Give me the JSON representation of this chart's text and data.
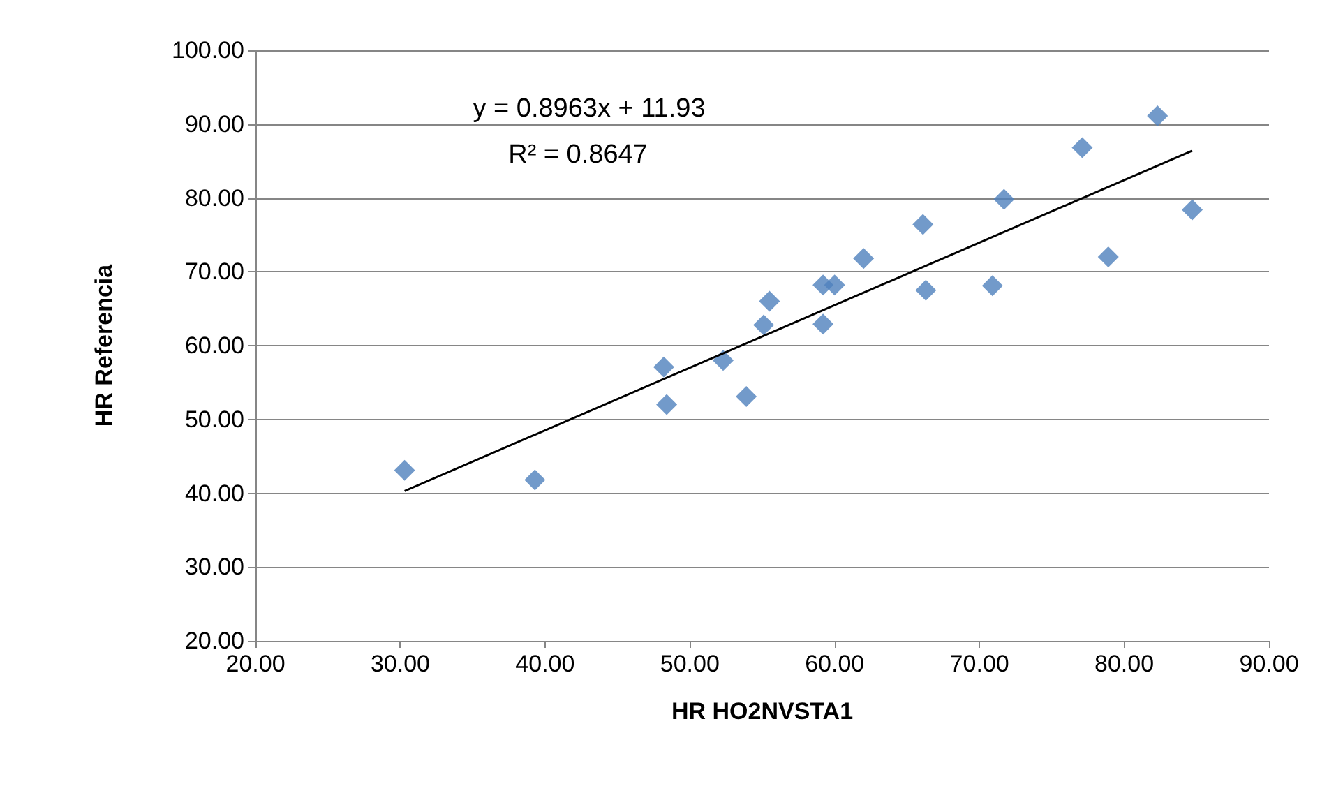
{
  "chart_data": {
    "type": "scatter",
    "xlabel": "HR HO2NVSTA1",
    "ylabel": "HR Referencia",
    "xlim": [
      20,
      90
    ],
    "xticks": [
      {
        "value": 20,
        "label": "20.00"
      },
      {
        "value": 30,
        "label": "30.00"
      },
      {
        "value": 40,
        "label": "40.00"
      },
      {
        "value": 50,
        "label": "50.00"
      },
      {
        "value": 60,
        "label": "60.00"
      },
      {
        "value": 70,
        "label": "70.00"
      },
      {
        "value": 80,
        "label": "80.00"
      },
      {
        "value": 90,
        "label": "90.00"
      }
    ],
    "ylim": [
      20,
      100
    ],
    "yticks": [
      {
        "value": 20,
        "label": "20.00"
      },
      {
        "value": 30,
        "label": "30.00"
      },
      {
        "value": 40,
        "label": "40.00"
      },
      {
        "value": 50,
        "label": "50.00"
      },
      {
        "value": 60,
        "label": "60.00"
      },
      {
        "value": 70,
        "label": "70.00"
      },
      {
        "value": 80,
        "label": "80.00"
      },
      {
        "value": 90,
        "label": "90.00"
      },
      {
        "value": 100,
        "label": "100.00"
      }
    ],
    "grid": "y",
    "marker": "diamond",
    "series": [
      {
        "color": "#4f81bd",
        "x": [
          30.3,
          39.3,
          48.2,
          48.4,
          52.3,
          53.9,
          55.1,
          55.5,
          59.2,
          59.2,
          60.0,
          62.0,
          66.1,
          66.3,
          70.9,
          71.7,
          77.1,
          78.9,
          82.3,
          84.7
        ],
        "values": [
          43.1,
          41.8,
          57.1,
          52.0,
          58.0,
          53.1,
          62.8,
          66.0,
          62.9,
          68.2,
          68.2,
          71.8,
          76.4,
          67.5,
          68.1,
          79.8,
          86.8,
          72.0,
          91.1,
          78.4
        ]
      },
      {
        "type": "line",
        "color": "#000000",
        "marker": "none",
        "x": [
          30.3,
          84.7
        ],
        "values": [
          40.3,
          86.4
        ]
      }
    ],
    "annotations": [
      "y = 0.8963x + 11.93",
      "R² = 0.8647"
    ]
  }
}
